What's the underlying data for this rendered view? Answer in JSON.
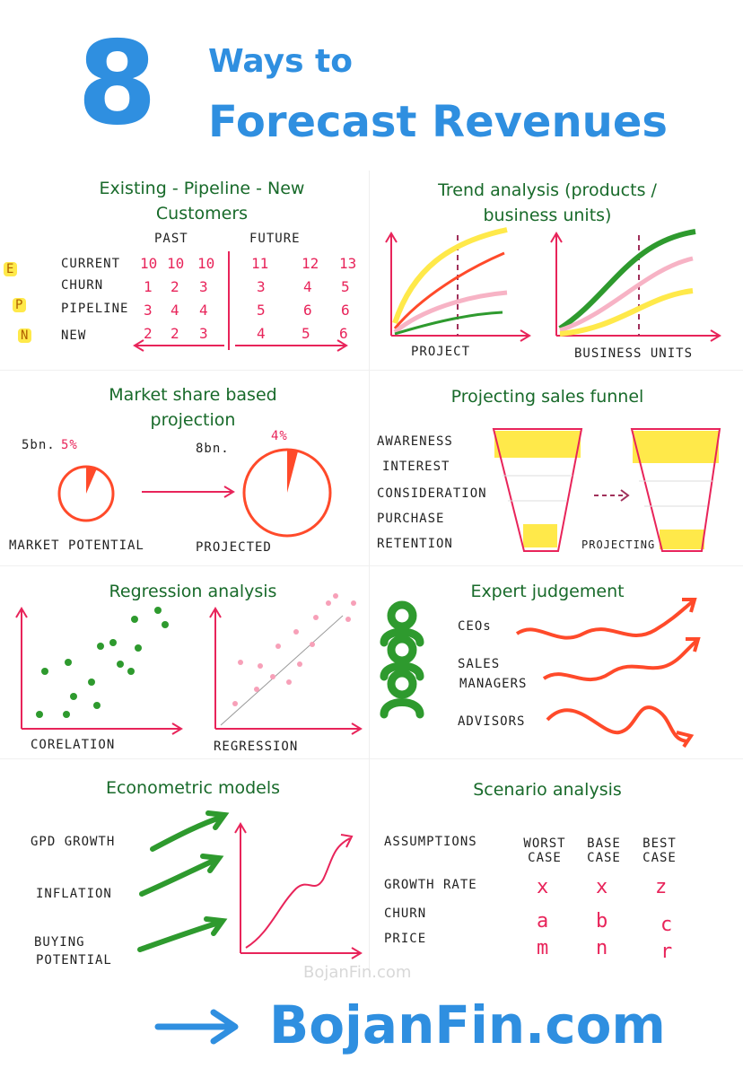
{
  "header": {
    "number": "8",
    "line1": "Ways to",
    "line2": "Forecast Revenues"
  },
  "s1": {
    "title_line1": "Existing - Pipeline - New",
    "title_line2": "Customers",
    "past": "PAST",
    "future": "FUTURE",
    "letters": [
      "E",
      "P",
      "N"
    ],
    "rows": [
      {
        "label": "CURRENT",
        "past": [
          "10",
          "10",
          "10"
        ],
        "future": [
          "11",
          "12",
          "13"
        ]
      },
      {
        "label": "CHURN",
        "past": [
          "1",
          "2",
          "3"
        ],
        "future": [
          "3",
          "4",
          "5"
        ]
      },
      {
        "label": "PIPELINE",
        "past": [
          "3",
          "4",
          "4"
        ],
        "future": [
          "5",
          "6",
          "6"
        ]
      },
      {
        "label": "NEW",
        "past": [
          "2",
          "2",
          "3"
        ],
        "future": [
          "4",
          "5",
          "6"
        ]
      }
    ]
  },
  "s2": {
    "title_line1": "Trend analysis (products /",
    "title_line2": "business units)",
    "label_left": "PROJECT",
    "label_right": "BUSINESS UNITS"
  },
  "s3": {
    "title_line1": "Market share based",
    "title_line2": "projection",
    "left_amount": "5bn.",
    "left_pct": "5%",
    "right_amount": "8bn.",
    "right_pct": "4%",
    "label_left": "MARKET POTENTIAL",
    "label_right": "PROJECTED"
  },
  "s4": {
    "title": "Projecting sales funnel",
    "stages": [
      "AWARENESS",
      "INTEREST",
      "CONSIDERATION",
      "PURCHASE",
      "RETENTION"
    ],
    "label": "PROJECTING"
  },
  "s5": {
    "title": "Regression analysis",
    "label_left": "CORELATION",
    "label_right": "REGRESSION"
  },
  "s6": {
    "title": "Expert judgement",
    "experts": [
      "CEOs",
      "SALES",
      "MANAGERS",
      "ADVISORS"
    ]
  },
  "s7": {
    "title": "Econometric models",
    "inputs": [
      "GPD GROWTH",
      "INFLATION",
      "BUYING",
      "POTENTIAL"
    ]
  },
  "s8": {
    "title": "Scenario analysis",
    "assumptions": "ASSUMPTIONS",
    "cols": [
      [
        "WORST",
        "CASE"
      ],
      [
        "BASE",
        "CASE"
      ],
      [
        "BEST",
        "CASE"
      ]
    ],
    "rows": [
      "GROWTH RATE",
      "CHURN",
      "PRICE"
    ],
    "values": [
      [
        "x",
        "x",
        "z"
      ],
      [
        "a",
        "b",
        "c"
      ],
      [
        "m",
        "n",
        "r"
      ]
    ]
  },
  "footer": {
    "watermark": "BojanFin.com",
    "url": "BojanFin.com"
  },
  "colors": {
    "blue": "#2f8fe0",
    "green": "#2e9a2e",
    "pink": "#e8245a",
    "red": "#ff4a2a",
    "yellow": "#ffe94a",
    "lightpink": "#f7b3c5"
  }
}
